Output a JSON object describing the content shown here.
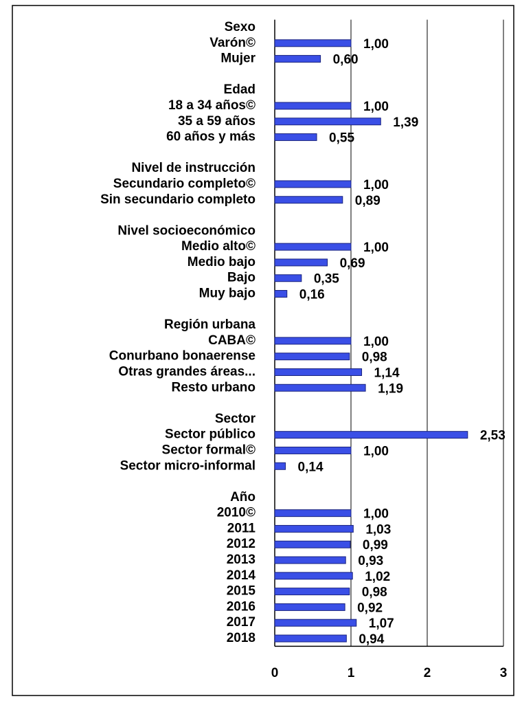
{
  "chart_data": {
    "type": "bar",
    "orientation": "horizontal",
    "categories": [
      "Sexo",
      "Varón©",
      "Mujer",
      null,
      "Edad",
      "18 a 34 años©",
      "35 a 59 años",
      "60 años y más",
      null,
      "Nivel de instrucción",
      "Secundario completo©",
      "Sin secundario completo",
      null,
      "Nivel socioeconómico",
      "Medio alto©",
      "Medio bajo",
      "Bajo",
      "Muy bajo",
      null,
      "Región urbana",
      "CABA©",
      "Conurbano bonaerense",
      "Otras grandes áreas...",
      "Resto urbano",
      null,
      "Sector",
      "Sector público",
      "Sector formal©",
      "Sector micro-informal",
      null,
      "Año",
      "2010©",
      "2011",
      "2012",
      "2013",
      "2014",
      "2015",
      "2016",
      "2017",
      "2018"
    ],
    "values": [
      null,
      1.0,
      0.6,
      null,
      null,
      1.0,
      1.39,
      0.55,
      null,
      null,
      1.0,
      0.89,
      null,
      null,
      1.0,
      0.69,
      0.35,
      0.16,
      null,
      null,
      1.0,
      0.98,
      1.14,
      1.19,
      null,
      null,
      2.53,
      1.0,
      0.14,
      null,
      null,
      1.0,
      1.03,
      0.99,
      0.93,
      1.02,
      0.98,
      0.92,
      1.07,
      0.94
    ],
    "value_labels": [
      null,
      "1,00",
      "0,60",
      null,
      null,
      "1,00",
      "1,39",
      "0,55",
      null,
      null,
      "1,00",
      "0,89",
      null,
      null,
      "1,00",
      "0,69",
      "0,35",
      "0,16",
      null,
      null,
      "1,00",
      "0,98",
      "1,14",
      "1,19",
      null,
      null,
      "2,53",
      "1,00",
      "0,14",
      null,
      null,
      "1,00",
      "1,03",
      "0,99",
      "0,93",
      "1,02",
      "0,98",
      "0,92",
      "1,07",
      "0,94"
    ],
    "color": "#3a4fe6",
    "xlim": [
      0,
      3
    ],
    "xticks": [
      0,
      1,
      2,
      3
    ],
    "grid": true
  }
}
